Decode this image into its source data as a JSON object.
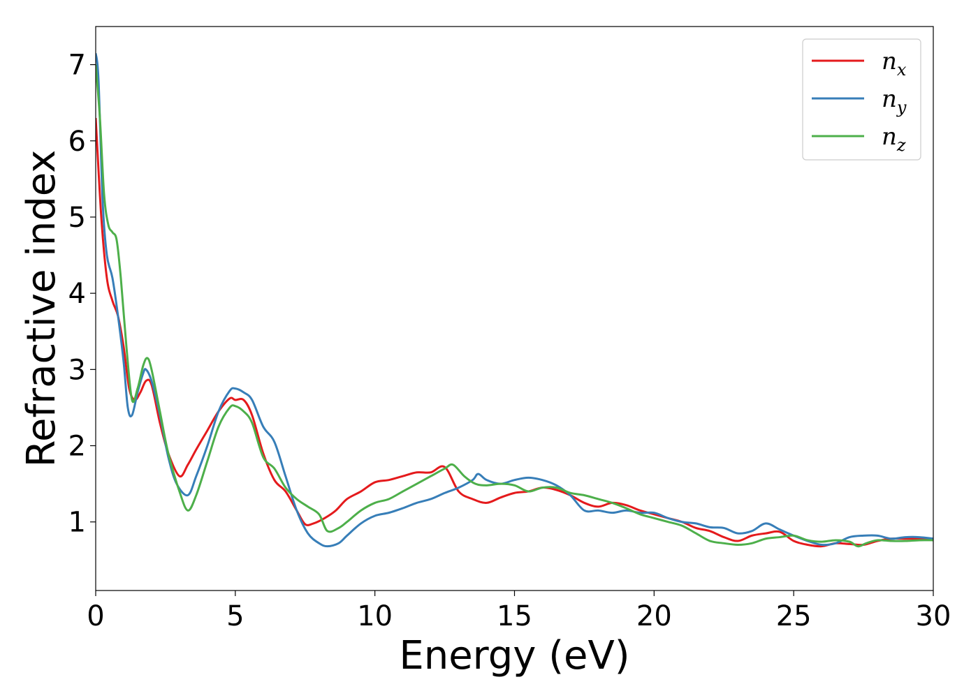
{
  "chart_data": {
    "type": "line",
    "xlabel": "Energy (eV)",
    "ylabel": "Refractive index",
    "xlim": [
      0,
      30
    ],
    "ylim": [
      0.1,
      7.5
    ],
    "xticks": [
      0,
      5,
      10,
      15,
      20,
      25,
      30
    ],
    "yticks": [
      1,
      2,
      3,
      4,
      5,
      6,
      7
    ],
    "grid": false,
    "legend_position": "top-right",
    "series": [
      {
        "name": "n",
        "subscript": "x",
        "color": "#e41a1c",
        "x": [
          0,
          0.2,
          0.4,
          0.6,
          0.8,
          1.0,
          1.2,
          1.4,
          1.6,
          1.8,
          2.0,
          2.3,
          2.6,
          3.0,
          3.3,
          3.6,
          4.0,
          4.4,
          4.8,
          5.0,
          5.3,
          5.6,
          6.0,
          6.4,
          6.8,
          7.2,
          7.5,
          7.8,
          8.2,
          8.6,
          9.0,
          9.5,
          10.0,
          10.5,
          11.0,
          11.5,
          12.0,
          12.5,
          13.0,
          13.5,
          14.0,
          14.5,
          15.0,
          15.5,
          16.0,
          16.5,
          17.0,
          17.5,
          18.0,
          18.5,
          19.0,
          19.5,
          20.0,
          20.5,
          21.0,
          21.5,
          22.0,
          22.5,
          23.0,
          23.5,
          24.0,
          24.5,
          25.0,
          25.5,
          26.0,
          26.5,
          27.0,
          27.5,
          28.0,
          28.5,
          29.0,
          29.5,
          30.0
        ],
        "y": [
          6.3,
          5.0,
          4.2,
          3.9,
          3.7,
          3.3,
          2.75,
          2.6,
          2.7,
          2.85,
          2.8,
          2.3,
          1.9,
          1.6,
          1.75,
          1.95,
          2.2,
          2.45,
          2.62,
          2.6,
          2.6,
          2.4,
          1.9,
          1.55,
          1.4,
          1.15,
          0.97,
          0.98,
          1.05,
          1.15,
          1.3,
          1.4,
          1.52,
          1.55,
          1.6,
          1.65,
          1.65,
          1.72,
          1.4,
          1.3,
          1.25,
          1.32,
          1.38,
          1.4,
          1.45,
          1.42,
          1.35,
          1.25,
          1.2,
          1.25,
          1.22,
          1.15,
          1.1,
          1.05,
          1.0,
          0.92,
          0.88,
          0.8,
          0.75,
          0.82,
          0.85,
          0.87,
          0.75,
          0.7,
          0.68,
          0.72,
          0.71,
          0.7,
          0.75,
          0.78,
          0.78,
          0.78,
          0.78
        ]
      },
      {
        "name": "n",
        "subscript": "y",
        "color": "#377eb8",
        "x": [
          0,
          0.1,
          0.25,
          0.4,
          0.6,
          0.8,
          1.0,
          1.15,
          1.3,
          1.5,
          1.7,
          1.8,
          2.0,
          2.3,
          2.6,
          2.9,
          3.3,
          3.6,
          4.0,
          4.4,
          4.8,
          5.0,
          5.3,
          5.6,
          6.0,
          6.4,
          6.8,
          7.2,
          7.6,
          8.0,
          8.3,
          8.7,
          9.0,
          9.5,
          10.0,
          10.5,
          11.0,
          11.5,
          12.0,
          12.5,
          13.0,
          13.5,
          13.7,
          14.0,
          14.5,
          15.0,
          15.5,
          16.0,
          16.5,
          17.0,
          17.5,
          18.0,
          18.5,
          19.0,
          19.5,
          20.0,
          20.5,
          21.0,
          21.5,
          22.0,
          22.5,
          23.0,
          23.5,
          24.0,
          24.5,
          25.0,
          25.5,
          26.0,
          26.5,
          27.0,
          27.5,
          28.0,
          28.5,
          29.0,
          29.5,
          30.0
        ],
        "y": [
          7.15,
          6.8,
          5.2,
          4.5,
          4.2,
          3.7,
          3.1,
          2.5,
          2.4,
          2.7,
          2.95,
          3.0,
          2.85,
          2.4,
          1.85,
          1.5,
          1.35,
          1.6,
          2.0,
          2.45,
          2.72,
          2.75,
          2.7,
          2.6,
          2.25,
          2.05,
          1.6,
          1.15,
          0.85,
          0.72,
          0.68,
          0.72,
          0.82,
          0.98,
          1.08,
          1.12,
          1.18,
          1.25,
          1.3,
          1.38,
          1.45,
          1.55,
          1.63,
          1.55,
          1.5,
          1.55,
          1.58,
          1.55,
          1.48,
          1.35,
          1.15,
          1.15,
          1.12,
          1.15,
          1.12,
          1.12,
          1.05,
          1.0,
          0.98,
          0.93,
          0.92,
          0.85,
          0.88,
          0.98,
          0.9,
          0.82,
          0.75,
          0.7,
          0.72,
          0.8,
          0.82,
          0.82,
          0.78,
          0.8,
          0.8,
          0.78
        ]
      },
      {
        "name": "n",
        "subscript": "z",
        "color": "#4daf4a",
        "x": [
          0,
          0.15,
          0.3,
          0.45,
          0.6,
          0.75,
          0.9,
          1.1,
          1.3,
          1.5,
          1.7,
          1.85,
          2.0,
          2.3,
          2.6,
          3.0,
          3.3,
          3.6,
          4.0,
          4.4,
          4.8,
          5.0,
          5.3,
          5.6,
          6.0,
          6.4,
          6.8,
          7.2,
          7.6,
          8.0,
          8.3,
          8.7,
          9.0,
          9.5,
          10.0,
          10.5,
          11.0,
          11.5,
          12.0,
          12.5,
          12.8,
          13.2,
          13.6,
          14.0,
          14.5,
          15.0,
          15.5,
          16.0,
          16.5,
          17.0,
          17.5,
          18.0,
          18.5,
          19.0,
          19.5,
          20.0,
          20.5,
          21.0,
          21.5,
          22.0,
          22.5,
          23.0,
          23.5,
          24.0,
          24.5,
          25.0,
          25.5,
          26.0,
          26.5,
          27.0,
          27.3,
          27.6,
          28.0,
          28.5,
          29.0,
          29.5,
          30.0
        ],
        "y": [
          7.0,
          6.3,
          5.3,
          4.9,
          4.8,
          4.7,
          4.2,
          3.3,
          2.6,
          2.75,
          3.05,
          3.15,
          3.0,
          2.45,
          1.9,
          1.4,
          1.15,
          1.35,
          1.8,
          2.25,
          2.5,
          2.52,
          2.45,
          2.3,
          1.85,
          1.7,
          1.45,
          1.3,
          1.2,
          1.1,
          0.88,
          0.92,
          1.0,
          1.15,
          1.25,
          1.3,
          1.4,
          1.5,
          1.6,
          1.7,
          1.75,
          1.6,
          1.5,
          1.48,
          1.5,
          1.48,
          1.4,
          1.45,
          1.45,
          1.38,
          1.35,
          1.3,
          1.25,
          1.18,
          1.1,
          1.05,
          1.0,
          0.95,
          0.85,
          0.75,
          0.72,
          0.7,
          0.72,
          0.78,
          0.8,
          0.82,
          0.76,
          0.74,
          0.76,
          0.74,
          0.68,
          0.72,
          0.76,
          0.75,
          0.75,
          0.76,
          0.76
        ]
      }
    ]
  }
}
